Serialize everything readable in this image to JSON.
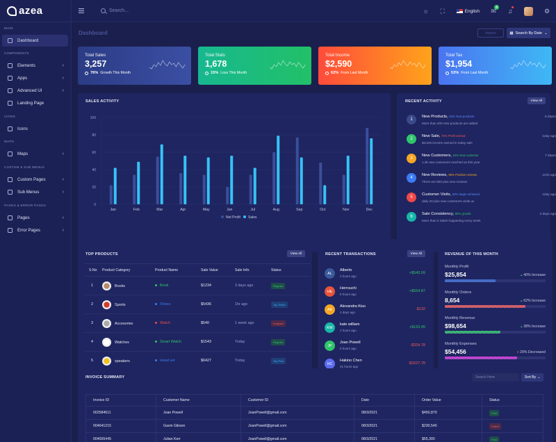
{
  "header": {
    "logo": "azea",
    "search_placeholder": "Search...",
    "language": "English",
    "mail_badge": "4"
  },
  "sidebar": {
    "sections": [
      {
        "title": "MAIN",
        "items": [
          {
            "label": "Dashboard",
            "icon": "home-icon",
            "chevron": false,
            "active": true
          }
        ]
      },
      {
        "title": "COMPONENTS",
        "items": [
          {
            "label": "Elements",
            "icon": "grid-icon",
            "chevron": true
          },
          {
            "label": "Apps",
            "icon": "apps-icon",
            "chevron": true
          },
          {
            "label": "Advanced UI",
            "icon": "layers-icon",
            "chevron": true
          },
          {
            "label": "Landing Page",
            "icon": "page-icon",
            "chevron": false
          }
        ]
      },
      {
        "title": "ICONS",
        "items": [
          {
            "label": "Icons",
            "icon": "gift-icon",
            "chevron": false
          }
        ]
      },
      {
        "title": "MAPS",
        "items": [
          {
            "label": "Maps",
            "icon": "map-icon",
            "chevron": true
          }
        ]
      },
      {
        "title": "CUSTOM & SUB MENUS",
        "items": [
          {
            "label": "Custom Pages",
            "icon": "page-icon",
            "chevron": true
          },
          {
            "label": "Sub Menus",
            "icon": "menu-icon",
            "chevron": true
          }
        ]
      },
      {
        "title": "PAGES & ERROR PAGES",
        "items": [
          {
            "label": "Pages",
            "icon": "file-icon",
            "chevron": true
          },
          {
            "label": "Error Pages",
            "icon": "alert-icon",
            "chevron": true
          }
        ]
      }
    ]
  },
  "page": {
    "title": "Dashboard",
    "import_label": "Import",
    "search_by_date_label": "Search By Date"
  },
  "stats": [
    {
      "label": "Total Sales",
      "value": "3,257",
      "percent": "76%",
      "note": "Growth This Month",
      "colors": [
        "#2b3b85",
        "#3b4fa3"
      ]
    },
    {
      "label": "Total Stats",
      "value": "1,678",
      "percent": "15%",
      "note": "Loss This Month",
      "colors": [
        "#17b890",
        "#22c068"
      ]
    },
    {
      "label": "Total Income",
      "value": "$2,590",
      "percent": "62%",
      "note": "From Last Month",
      "colors": [
        "#ff4b3b",
        "#ffa31a"
      ]
    },
    {
      "label": "Total Tax",
      "value": "$1,954",
      "percent": "53%",
      "note": "From Last Month",
      "colors": [
        "#4a74f0",
        "#3fb8f5"
      ]
    }
  ],
  "sales_activity": {
    "title": "SALES ACTIVITY",
    "legend": [
      "Net Profit",
      "Sales"
    ]
  },
  "chart_data": {
    "type": "bar",
    "categories": [
      "Jan",
      "Feb",
      "Mar",
      "Apr",
      "May",
      "Jun",
      "Jul",
      "Aug",
      "Sep",
      "Oct",
      "Nov",
      "Dec"
    ],
    "series": [
      {
        "name": "Net Profit",
        "values": [
          22,
          34,
          55,
          36,
          34,
          20,
          34,
          60,
          77,
          48,
          34,
          88
        ]
      },
      {
        "name": "Sales",
        "values": [
          42,
          49,
          69,
          56,
          54,
          56,
          42,
          79,
          54,
          22,
          56,
          76
        ]
      }
    ],
    "yticks": [
      "0",
      "20",
      "40",
      "60",
      "80",
      "100"
    ],
    "ylim": [
      0,
      100
    ],
    "colors": [
      "#3a4f9a",
      "#36c2f6"
    ]
  },
  "recent_activity": {
    "title": "RECENT ACTIVITY",
    "view_all": "View All",
    "items": [
      {
        "num": "1",
        "title": "New Products,",
        "tag": "52% New products",
        "tag_color": "#5b8cff",
        "desc": "More than 200 new products are added",
        "time": "6:45pm",
        "color": "#3a4a8a"
      },
      {
        "num": "2",
        "title": "New Sale,",
        "tag": "75% Profit earned",
        "tag_color": "#f05a5a",
        "desc": "$3,546 income earned in today sale",
        "time": "1day ago",
        "color": "#2fc56b"
      },
      {
        "num": "3",
        "title": "New Customers,",
        "tag": "24% New customer",
        "tag_color": "#2fc56b",
        "desc": "1.3k new customers reached us this year",
        "time": "7:45pm",
        "color": "#f5a623"
      },
      {
        "num": "4",
        "title": "New Reviews,",
        "tag": "96% Positive reviews.",
        "tag_color": "#f5a623",
        "desc": "There are 500 plus new reviews",
        "time": "1min ago",
        "color": "#3b7cf5"
      },
      {
        "num": "5",
        "title": "Customer Visits,",
        "tag": "53% target achieved",
        "tag_color": "#5b8cff",
        "desc": "daily 20 plus new customers visits us",
        "time": "1day ago",
        "color": "#f04848"
      },
      {
        "num": "6",
        "title": "Sale Consistency,",
        "tag": "90% growth.",
        "tag_color": "#2fc56b",
        "desc": "More than 5 Sales happening every week",
        "time": "3 days ago",
        "color": "#17b6a8"
      }
    ]
  },
  "top_products": {
    "title": "TOP PRODUCTS",
    "view_all": "View All",
    "columns": [
      "S.No",
      "Product Category",
      "Product Name",
      "Sale Value",
      "Sale Info",
      "Status"
    ],
    "rows": [
      {
        "sno": "1",
        "category": "Books",
        "name": "Book",
        "dot": "#2fc56b",
        "name_color": "#2fc56b",
        "value": "$1234",
        "info": "3 days ago",
        "status": "Regular",
        "status_color": "#2fc56b",
        "status_bg": "#1f4d4a",
        "img": "#b98a6a"
      },
      {
        "sno": "2",
        "category": "Sports",
        "name": "Shoes",
        "dot": "#3b7cf5",
        "name_color": "#3b7cf5",
        "value": "$5436",
        "info": "1hr ago",
        "status": "Top Seller",
        "status_color": "#3fa9f5",
        "status_bg": "#1f3f77",
        "img": "#d33b2a"
      },
      {
        "sno": "3",
        "category": "Accesories",
        "name": "Watch",
        "dot": "#f04848",
        "name_color": "#f04848",
        "value": "$540",
        "info": "1 week ago",
        "status": "Irregular",
        "status_color": "#f05a5a",
        "status_bg": "#4d2a4a",
        "img": "#aaaaaa"
      },
      {
        "sno": "4",
        "category": "Watches",
        "name": "Smart Watch",
        "dot": "#2fc56b",
        "name_color": "#2fc56b",
        "value": "$1543",
        "info": "Today",
        "status": "Regular",
        "status_color": "#2fc56b",
        "status_bg": "#1f4d4a",
        "img": "#ffffff"
      },
      {
        "sno": "5",
        "category": "speakers",
        "name": "Head set",
        "dot": "#3b7cf5",
        "name_color": "#3b7cf5",
        "value": "$6427",
        "info": "Today",
        "status": "Top Pick",
        "status_color": "#3fa9f5",
        "status_bg": "#1f3f77",
        "img": "#f2c31b"
      }
    ]
  },
  "recent_transactions": {
    "title": "RECENT TRANSACTIONS",
    "view_all": "View All",
    "items": [
      {
        "initials": "AL",
        "name": "Alberto",
        "time": "2 hours ago",
        "amount": "+$543.99",
        "amount_color": "#2fc56b",
        "color": "#3a5a9a"
      },
      {
        "initials": "HE",
        "name": "Herrouchi",
        "time": "8 hours ago",
        "amount": "+$554.87",
        "amount_color": "#2fc56b",
        "color": "#e8543b"
      },
      {
        "initials": "AK",
        "name": "Alexandra Kiso",
        "time": "2 days ago",
        "amount": "-$132",
        "amount_color": "#f05a5a",
        "color": "#f5a623"
      },
      {
        "initials": "KW",
        "name": "kate william",
        "time": "1 hours ago",
        "amount": "+$153.45",
        "amount_color": "#2fc56b",
        "color": "#17b6a8"
      },
      {
        "initials": "JP",
        "name": "Joan Powell",
        "time": "5 hours ago",
        "amount": "-$324.78",
        "amount_color": "#f05a5a",
        "color": "#2fc56b"
      },
      {
        "initials": "HC",
        "name": "Hakino Chen",
        "time": "21 hours ago",
        "amount": "-$3227.78",
        "amount_color": "#f05a5a",
        "color": "#5b6cf0"
      }
    ]
  },
  "revenue": {
    "title": "REVENUE OF THIS MONTH",
    "items": [
      {
        "label": "Monthly Profit",
        "value": "$25,854",
        "pct": "40% Increase",
        "arrow": "up",
        "fill": 0.5,
        "color": "#3b6fd9"
      },
      {
        "label": "Monthly Orders",
        "value": "8,654",
        "pct": "62% Increase",
        "arrow": "up",
        "fill": 0.8,
        "color": "#f05a5a"
      },
      {
        "label": "Monthly Revenue",
        "value": "$98,654",
        "pct": "38% Increase",
        "arrow": "up",
        "fill": 0.55,
        "color": "#2fc56b"
      },
      {
        "label": "Monthly Expenses",
        "value": "$54,456",
        "pct": "20% Decreased",
        "arrow": "down",
        "fill": 0.72,
        "color": "#d83adf"
      }
    ]
  },
  "invoice": {
    "title": "INVOICE SUMMARY",
    "search_placeholder": "Search Here",
    "sort_label": "Sort By",
    "columns": [
      "Invoice ID",
      "Customer Name",
      "Customer ID",
      "Date",
      "Order Value",
      "Status"
    ],
    "rows": [
      {
        "id": "002584611",
        "name": "Joan Powell",
        "cid": "JoanPowell@gmail.com",
        "date": "08/3/2021",
        "value": "$450,870",
        "status": "Paid",
        "status_color": "#2fc56b"
      },
      {
        "id": "004641215",
        "name": "Gavin Gibson",
        "cid": "JoanPowell@gmail.com",
        "date": "08/3/2021",
        "value": "$230,540",
        "status": "Failed",
        "status_color": "#f05a5a"
      },
      {
        "id": "004655445",
        "name": "Julian Kerr",
        "cid": "JoanPowell@gmail.com",
        "date": "08/3/2021",
        "value": "$55,300",
        "status": "Paid",
        "status_color": "#2fc56b"
      }
    ]
  }
}
